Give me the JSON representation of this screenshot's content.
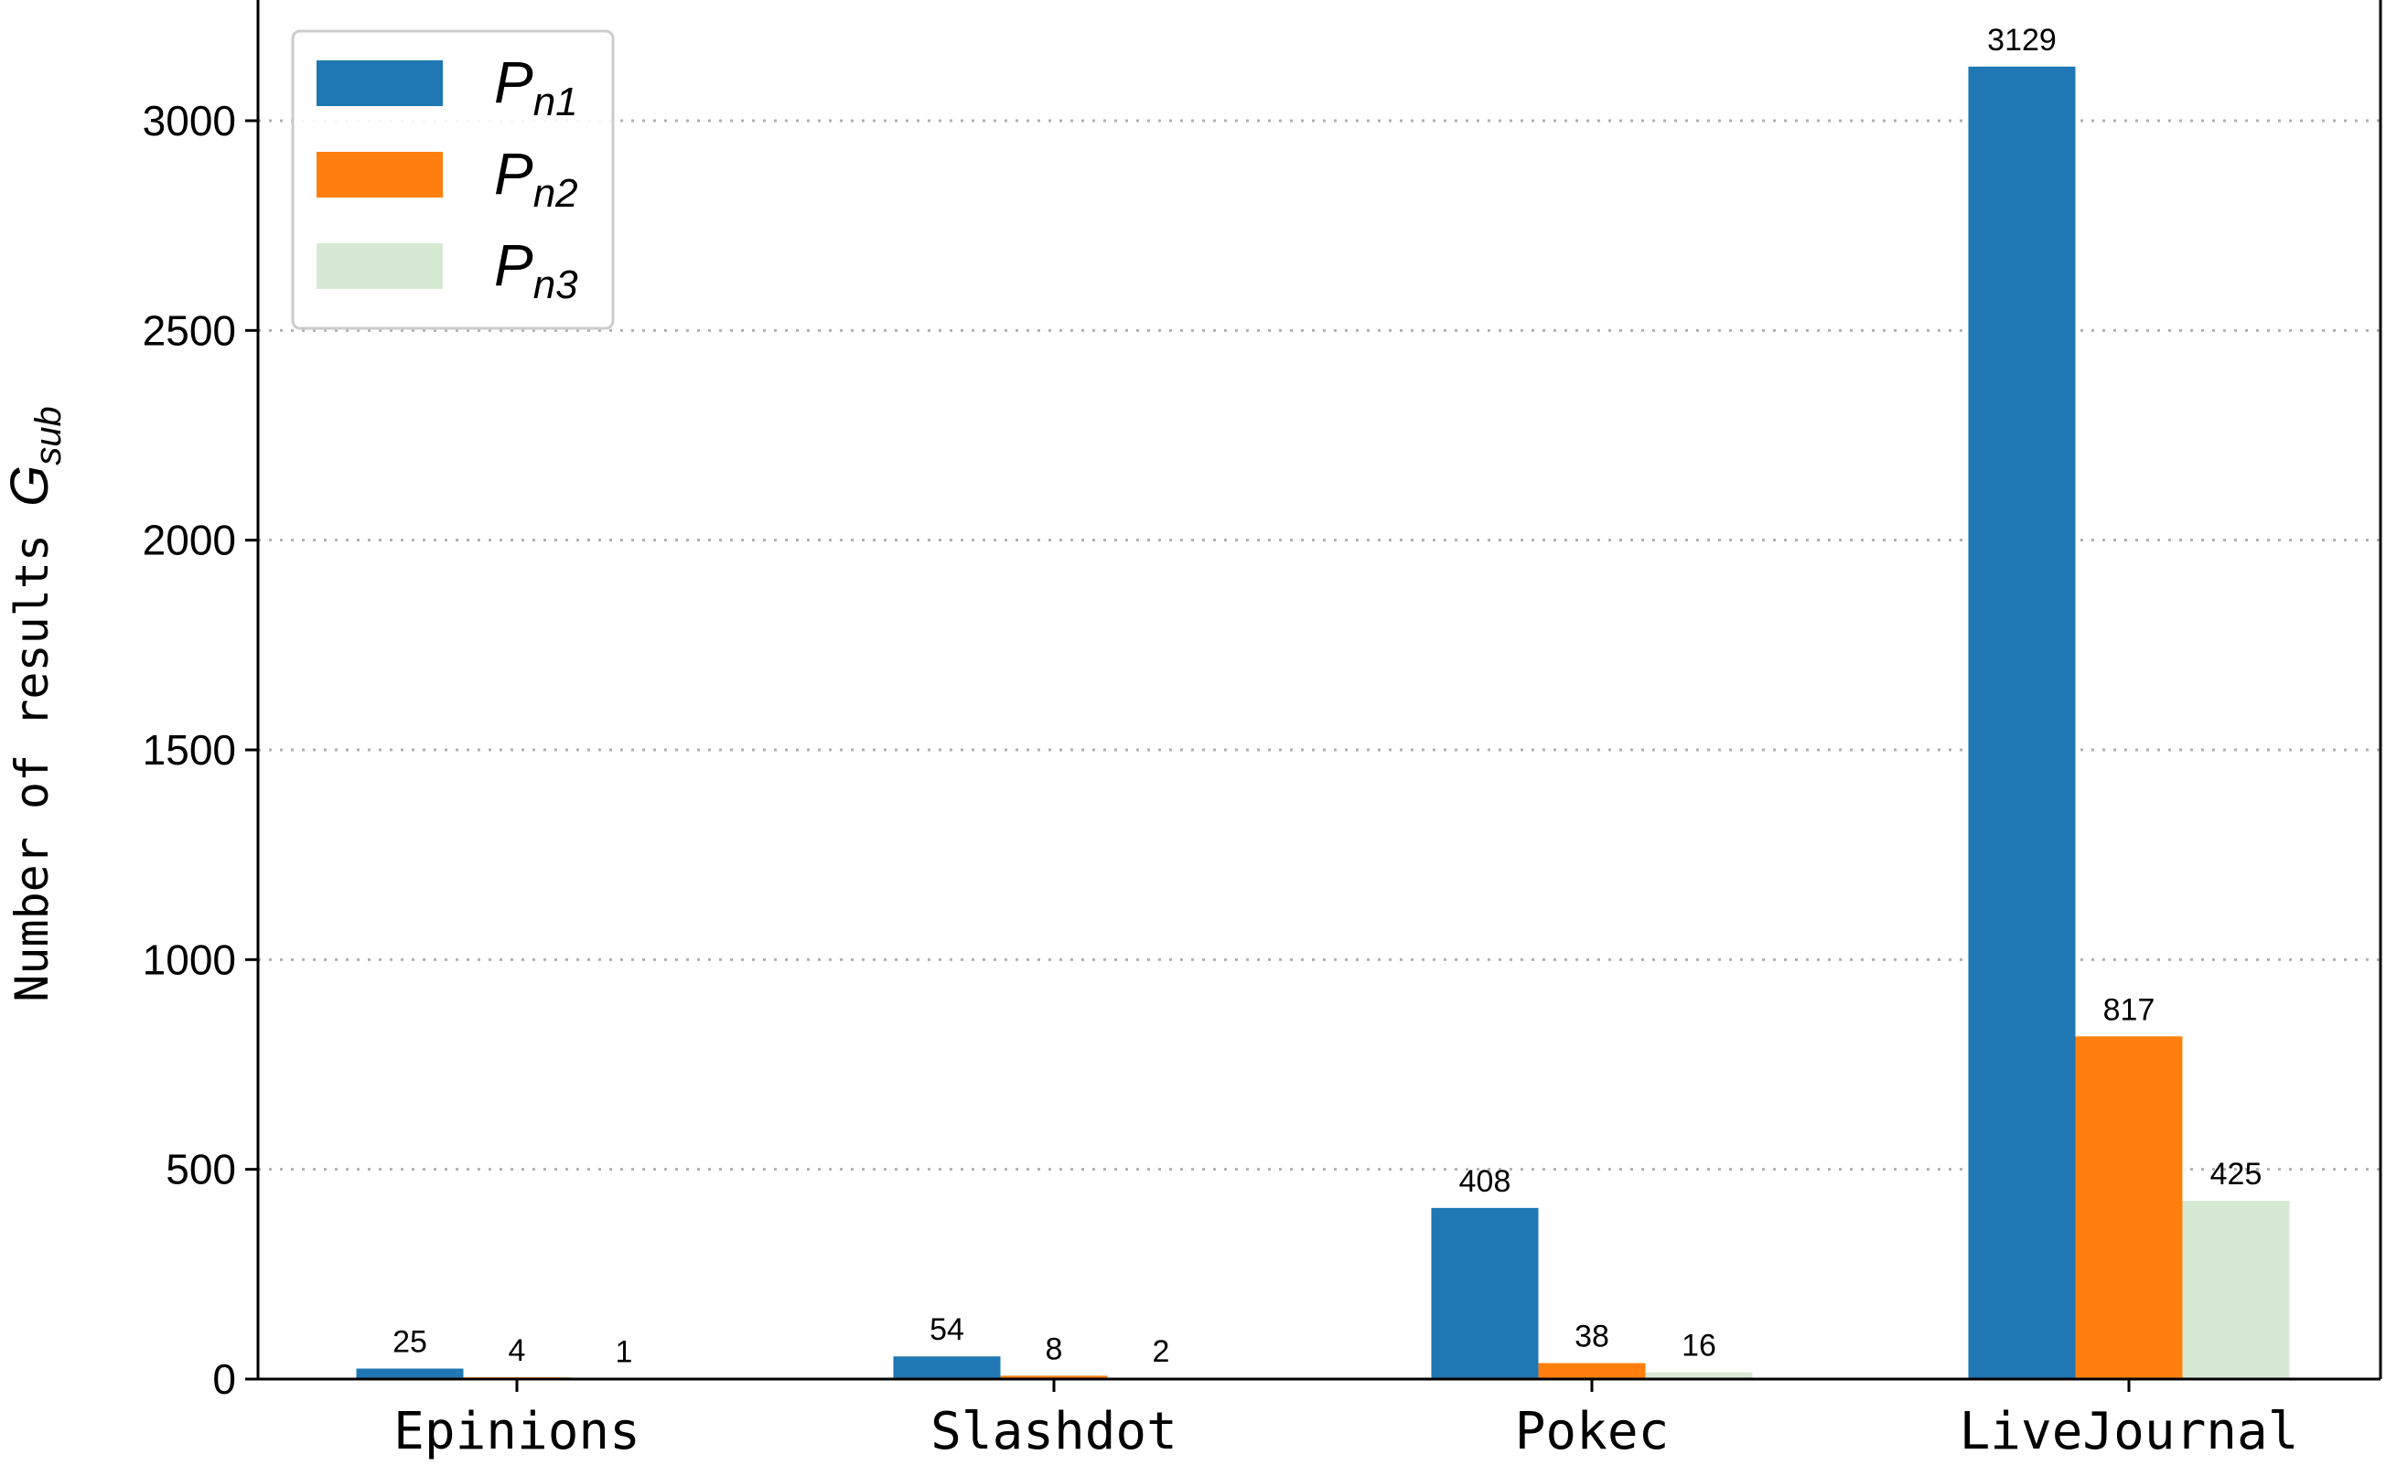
{
  "chart_data": {
    "type": "bar",
    "categories": [
      "Epinions",
      "Slashdot",
      "Pokec",
      "LiveJournal"
    ],
    "series": [
      {
        "name": "P_n1",
        "label_main": "P",
        "label_sub": "n1",
        "color": "#1f77b4",
        "values": [
          25,
          54,
          408,
          3129
        ]
      },
      {
        "name": "P_n2",
        "label_main": "P",
        "label_sub": "n2",
        "color": "#ff7f0e",
        "values": [
          4,
          8,
          38,
          817
        ]
      },
      {
        "name": "P_n3",
        "label_main": "P",
        "label_sub": "n3",
        "color": "#d6e9d3",
        "values": [
          1,
          2,
          16,
          425
        ]
      }
    ],
    "ylabel_main": "Number of results ",
    "ylabel_math": "G",
    "ylabel_math_sub": "sub",
    "ylim": [
      0,
      3000
    ],
    "yticks": [
      "0",
      "500",
      "1000",
      "1500",
      "2000",
      "2500",
      "3000"
    ],
    "ytick_values": [
      0,
      500,
      1000,
      1500,
      2000,
      2500,
      3000
    ],
    "grid": "y-dotted",
    "legend_position": "top-left"
  }
}
